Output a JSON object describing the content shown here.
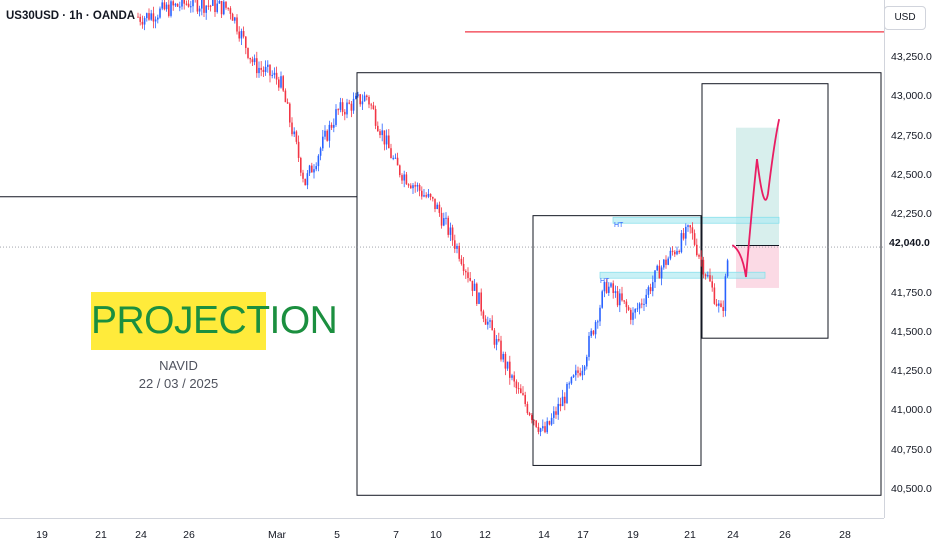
{
  "header": {
    "symbol_line": "US30USD · 1h · OANDA"
  },
  "price_axis": {
    "currency": "USD",
    "ticks": [
      "43,250.0",
      "43,000.0",
      "42,750.0",
      "42,500.0",
      "42,250.0",
      "42,040.0",
      "41,750.0",
      "41,500.0",
      "41,250.0",
      "41,000.0",
      "40,750.0",
      "40,500.0"
    ],
    "last_price": "42,040.0"
  },
  "time_axis": {
    "ticks": [
      "19",
      "21",
      "24",
      "26",
      "Mar",
      "5",
      "7",
      "10",
      "12",
      "14",
      "17",
      "19",
      "21",
      "24",
      "26",
      "28"
    ]
  },
  "annotations": {
    "badge": "PROJECTION",
    "author": "NAVID",
    "date": "22 / 03 / 2025",
    "ht1": "HT",
    "ht2": "HT"
  },
  "colors": {
    "up_candle": "#2962ff",
    "down_candle": "#f23645",
    "resistance_line": "#f23645",
    "projection_path": "#e91e63",
    "target_zone": "#26a69a",
    "stop_zone": "#f8bbd0",
    "ht_zone": "#b2ebf2",
    "badge_background": "#ffeb3b",
    "badge_text": "#1b8f3f"
  },
  "chart_data": {
    "type": "candlestick",
    "title": "US30USD · 1h · OANDA",
    "y_unit": "USD",
    "ylim": [
      40400,
      43600
    ],
    "x_range": [
      "Feb 18",
      "Mar 28"
    ],
    "price_path_control_points": [
      {
        "t": "Feb 20",
        "price": 43650
      },
      {
        "t": "Feb 24",
        "price": 43500
      },
      {
        "t": "Feb 26",
        "price": 43600
      },
      {
        "t": "Feb 27",
        "price": 43560
      },
      {
        "t": "Feb 28",
        "price": 43200
      },
      {
        "t": "Mar 3",
        "price": 43100
      },
      {
        "t": "Mar 4",
        "price": 42450
      },
      {
        "t": "Mar 5",
        "price": 42900
      },
      {
        "t": "Mar 6",
        "price": 43000
      },
      {
        "t": "Mar 7",
        "price": 42550
      },
      {
        "t": "Mar 10",
        "price": 42300
      },
      {
        "t": "Mar 11",
        "price": 42000
      },
      {
        "t": "Mar 12",
        "price": 41600
      },
      {
        "t": "Mar 13",
        "price": 41150
      },
      {
        "t": "Mar 14",
        "price": 40850
      },
      {
        "t": "Mar 17",
        "price": 41300
      },
      {
        "t": "Mar 18",
        "price": 41800
      },
      {
        "t": "Mar 19",
        "price": 41600
      },
      {
        "t": "Mar 20",
        "price": 41900
      },
      {
        "t": "Mar 21",
        "price": 42150
      },
      {
        "t": "Mar 24",
        "price": 41600
      },
      {
        "t": "Mar 24",
        "price": 42050
      }
    ],
    "horizontal_levels": [
      {
        "name": "resistance",
        "price": 43410
      },
      {
        "name": "box1_top",
        "price": 43150
      },
      {
        "name": "left_support",
        "price": 42360
      },
      {
        "name": "box_bottom",
        "price": 40460
      }
    ],
    "projection": {
      "from_price": 42050,
      "dip_to": 41850,
      "peak_1": 42600,
      "pullback": 42380,
      "target": 42850
    },
    "grid": false,
    "legend": "none"
  }
}
